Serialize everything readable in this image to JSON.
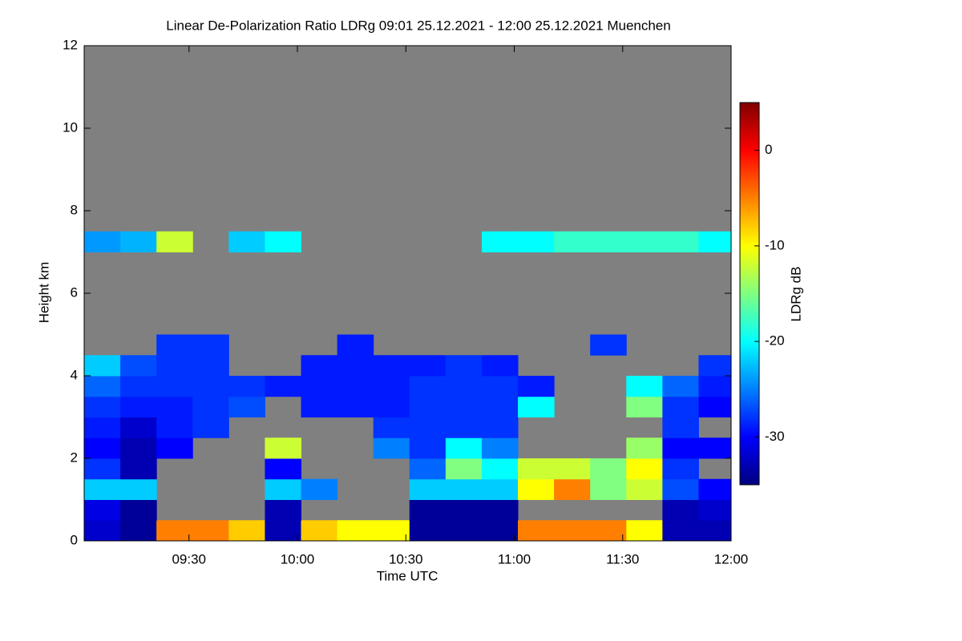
{
  "chart_data": {
    "type": "heatmap",
    "title": "Linear De-Polarization Ratio LDRg   09:01 25.12.2021 - 12:00 25.12.2021 Muenchen",
    "x_label": "Time UTC",
    "y_label": "Height km",
    "colorbar_label": "LDRg dB",
    "xlim": [
      "09:01",
      "12:00"
    ],
    "xticks": [
      "09:30",
      "10:00",
      "10:30",
      "11:00",
      "11:30",
      "12:00"
    ],
    "ylim": [
      0,
      12
    ],
    "yticks": [
      0,
      2,
      4,
      6,
      8,
      10,
      12
    ],
    "clim": [
      -35,
      5
    ],
    "cticks": [
      0,
      -10,
      -20,
      -30
    ],
    "colormap": [
      "#00007f",
      "#0000ff",
      "#0080ff",
      "#00ffff",
      "#80ff80",
      "#ffff00",
      "#ff8000",
      "#ff0000",
      "#7f0000"
    ],
    "background": "#808080",
    "x": [
      "09:01",
      "09:11",
      "09:21",
      "09:31",
      "09:41",
      "09:51",
      "10:01",
      "10:11",
      "10:21",
      "10:31",
      "10:41",
      "10:51",
      "11:01",
      "11:11",
      "11:21",
      "11:31",
      "11:41",
      "11:51",
      "12:00"
    ],
    "y": [
      0,
      0.5,
      1,
      1.5,
      2,
      2.5,
      3,
      3.5,
      4,
      4.5,
      5,
      5.5,
      6,
      6.5,
      7,
      7.5
    ],
    "z": [
      [
        -32,
        -34,
        -5,
        -5,
        -8,
        -33,
        -8,
        -10,
        -10,
        -34,
        -34,
        -34,
        -5,
        -5,
        -5,
        -10,
        -33,
        -33
      ],
      [
        -31,
        -34,
        null,
        null,
        null,
        -33,
        null,
        null,
        null,
        -34,
        -34,
        -34,
        null,
        null,
        null,
        null,
        -33,
        -32
      ],
      [
        -22,
        -22,
        null,
        null,
        null,
        -22,
        -25,
        null,
        null,
        -22,
        -22,
        -22,
        -10,
        -5,
        -15,
        -12,
        -27,
        -30
      ],
      [
        -28,
        -33,
        null,
        null,
        null,
        -30,
        null,
        null,
        null,
        -26,
        -15,
        -20,
        -12,
        -12,
        -15,
        -10,
        -28,
        null
      ],
      [
        -30,
        -33,
        -30,
        null,
        null,
        -12,
        null,
        null,
        -25,
        -28,
        -20,
        -25,
        null,
        null,
        null,
        -14,
        -30,
        -30
      ],
      [
        -29,
        -32,
        -29,
        -28,
        null,
        null,
        null,
        null,
        -28,
        -28,
        -28,
        -28,
        null,
        null,
        null,
        null,
        -28,
        null
      ],
      [
        -28,
        -29,
        -29,
        -28,
        -27,
        null,
        -29,
        -29,
        -29,
        -28,
        -28,
        -28,
        -20,
        null,
        null,
        -15,
        -28,
        -30
      ],
      [
        -26,
        -28,
        -28,
        -28,
        -28,
        -29,
        -29,
        -29,
        -29,
        -28,
        -28,
        -28,
        -29,
        null,
        null,
        -20,
        -26,
        -29
      ],
      [
        -22,
        -27,
        -28,
        -28,
        null,
        null,
        -29,
        -29,
        -29,
        -29,
        -28,
        -29,
        null,
        null,
        null,
        null,
        null,
        -28
      ],
      [
        null,
        null,
        -28,
        -28,
        null,
        null,
        null,
        -29,
        null,
        null,
        null,
        null,
        null,
        null,
        -28,
        null,
        null,
        null
      ],
      [
        null,
        null,
        null,
        null,
        null,
        null,
        null,
        null,
        null,
        null,
        null,
        null,
        null,
        null,
        null,
        null,
        null,
        null
      ],
      [
        null,
        null,
        null,
        null,
        null,
        null,
        null,
        null,
        null,
        null,
        null,
        null,
        null,
        null,
        null,
        null,
        null,
        null
      ],
      [
        null,
        null,
        null,
        null,
        null,
        null,
        null,
        null,
        null,
        null,
        null,
        null,
        null,
        null,
        null,
        null,
        null,
        null
      ],
      [
        null,
        null,
        null,
        null,
        null,
        null,
        null,
        null,
        null,
        null,
        null,
        null,
        null,
        null,
        null,
        null,
        null,
        null
      ],
      [
        -24,
        -23,
        -12,
        null,
        -22,
        -20,
        null,
        null,
        null,
        null,
        null,
        -20,
        -20,
        -18,
        -18,
        -18,
        -18,
        -20
      ]
    ]
  }
}
